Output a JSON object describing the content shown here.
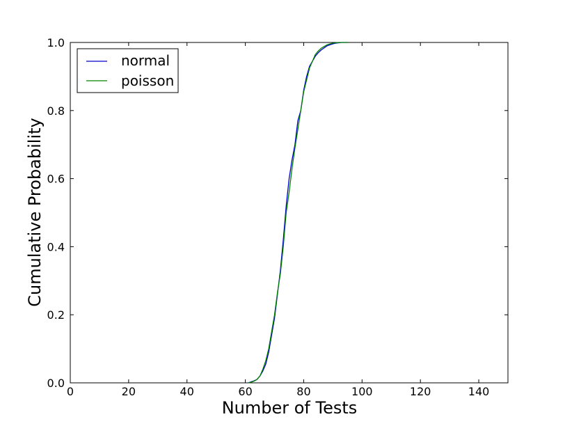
{
  "chart_data": {
    "type": "line",
    "title": "",
    "xlabel": "Number of Tests",
    "ylabel": "Cumulative Probability",
    "xlim": [
      0,
      150
    ],
    "ylim": [
      0.0,
      1.0
    ],
    "xticks": [
      0,
      20,
      40,
      60,
      80,
      100,
      120,
      140
    ],
    "yticks": [
      0.0,
      0.2,
      0.4,
      0.6,
      0.8,
      1.0
    ],
    "xtick_labels": [
      "0",
      "20",
      "40",
      "60",
      "80",
      "100",
      "120",
      "140"
    ],
    "ytick_labels": [
      "0.0",
      "0.2",
      "0.4",
      "0.6",
      "0.8",
      "1.0"
    ],
    "grid": false,
    "legend_position": "top-left",
    "series": [
      {
        "name": "normal",
        "color": "#0000cc",
        "x": [
          61,
          62,
          63,
          64,
          65,
          66,
          67,
          68,
          69,
          70,
          71,
          72,
          73,
          74,
          75,
          76,
          77,
          78,
          79,
          80,
          81,
          82,
          83,
          84,
          85,
          86,
          87,
          88,
          89,
          90,
          91,
          92,
          93,
          94,
          95
        ],
        "y": [
          0.0,
          0.003,
          0.006,
          0.01,
          0.02,
          0.035,
          0.055,
          0.09,
          0.14,
          0.19,
          0.26,
          0.33,
          0.42,
          0.52,
          0.6,
          0.655,
          0.7,
          0.77,
          0.8,
          0.86,
          0.9,
          0.93,
          0.945,
          0.96,
          0.97,
          0.978,
          0.984,
          0.99,
          0.993,
          0.996,
          0.998,
          0.999,
          1.0,
          1.0,
          1.0
        ]
      },
      {
        "name": "poisson",
        "color": "#008000",
        "x": [
          61,
          62,
          63,
          64,
          65,
          66,
          67,
          68,
          69,
          70,
          71,
          72,
          73,
          74,
          75,
          76,
          77,
          78,
          79,
          80,
          81,
          82,
          83,
          84,
          85,
          86,
          87,
          88,
          89,
          90,
          91,
          92,
          93,
          94,
          95
        ],
        "y": [
          0.0,
          0.002,
          0.005,
          0.01,
          0.02,
          0.04,
          0.065,
          0.1,
          0.15,
          0.2,
          0.265,
          0.32,
          0.4,
          0.5,
          0.56,
          0.63,
          0.69,
          0.745,
          0.8,
          0.855,
          0.89,
          0.925,
          0.945,
          0.965,
          0.975,
          0.983,
          0.988,
          0.993,
          0.996,
          0.998,
          0.999,
          1.0,
          1.0,
          1.0,
          1.0
        ]
      }
    ]
  }
}
